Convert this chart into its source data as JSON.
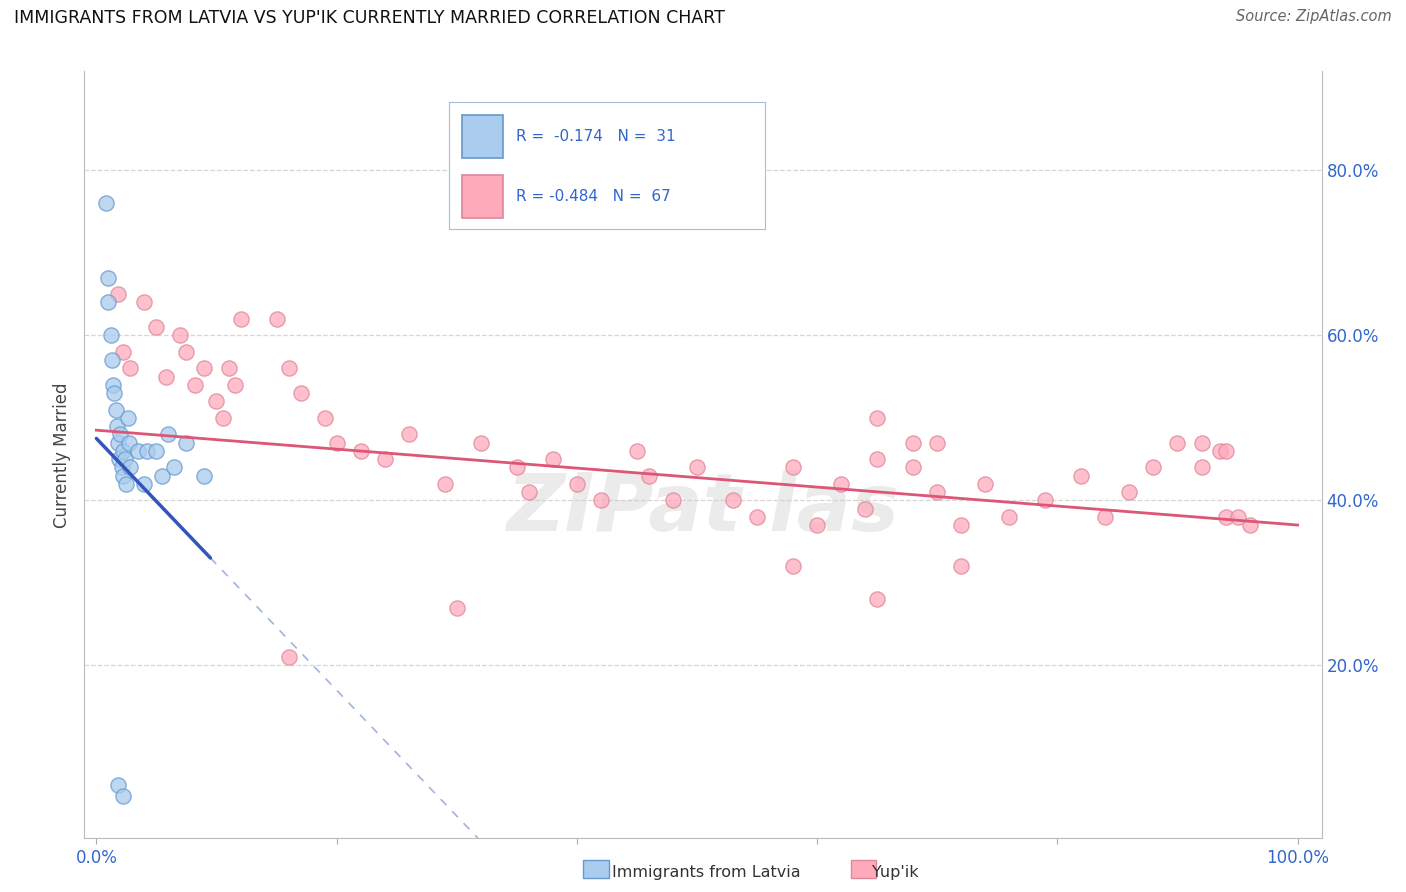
{
  "title": "IMMIGRANTS FROM LATVIA VS YUP'IK CURRENTLY MARRIED CORRELATION CHART",
  "source": "Source: ZipAtlas.com",
  "ylabel": "Currently Married",
  "r_latvia": -0.174,
  "n_latvia": 31,
  "r_yupik": -0.484,
  "n_yupik": 67,
  "xlim": [
    -0.01,
    1.02
  ],
  "ylim": [
    -0.01,
    0.92
  ],
  "xticks": [
    0.0,
    0.2,
    0.4,
    0.6,
    0.8,
    1.0
  ],
  "yticks": [
    0.2,
    0.4,
    0.6,
    0.8
  ],
  "xticklabels": [
    "0.0%",
    "",
    "",
    "",
    "",
    "100.0%"
  ],
  "yticklabels_right": [
    "20.0%",
    "40.0%",
    "60.0%",
    "80.0%"
  ],
  "color_latvia_face": "#aaccee",
  "color_latvia_edge": "#6699cc",
  "color_yupik_face": "#ffaabb",
  "color_yupik_edge": "#dd8899",
  "line_latvia_color": "#3355bb",
  "line_yupik_color": "#dd5577",
  "background": "#ffffff",
  "grid_color": "#cccccc",
  "legend_box_color": "#f0f4ff",
  "legend_border_color": "#aabbdd",
  "latvia_x": [
    0.008,
    0.01,
    0.01,
    0.012,
    0.013,
    0.014,
    0.015,
    0.016,
    0.017,
    0.018,
    0.019,
    0.02,
    0.021,
    0.022,
    0.022,
    0.024,
    0.025,
    0.026,
    0.027,
    0.028,
    0.035,
    0.04,
    0.042,
    0.05,
    0.055,
    0.06,
    0.065,
    0.075,
    0.09,
    0.018,
    0.022
  ],
  "latvia_y": [
    0.76,
    0.67,
    0.64,
    0.6,
    0.57,
    0.54,
    0.53,
    0.51,
    0.49,
    0.47,
    0.45,
    0.48,
    0.44,
    0.46,
    0.43,
    0.45,
    0.42,
    0.5,
    0.47,
    0.44,
    0.46,
    0.42,
    0.46,
    0.46,
    0.43,
    0.48,
    0.44,
    0.47,
    0.43,
    0.055,
    0.042
  ],
  "yupik_x": [
    0.018,
    0.022,
    0.028,
    0.04,
    0.05,
    0.058,
    0.07,
    0.075,
    0.082,
    0.09,
    0.1,
    0.105,
    0.11,
    0.115,
    0.12,
    0.15,
    0.16,
    0.17,
    0.19,
    0.2,
    0.22,
    0.24,
    0.26,
    0.29,
    0.32,
    0.35,
    0.36,
    0.38,
    0.4,
    0.42,
    0.45,
    0.46,
    0.48,
    0.5,
    0.53,
    0.55,
    0.58,
    0.6,
    0.62,
    0.64,
    0.65,
    0.68,
    0.7,
    0.72,
    0.74,
    0.76,
    0.79,
    0.82,
    0.84,
    0.86,
    0.88,
    0.9,
    0.92,
    0.94,
    0.96,
    0.58,
    0.3,
    0.16,
    0.72,
    0.65,
    0.68,
    0.65,
    0.7,
    0.92,
    0.935,
    0.94,
    0.95
  ],
  "yupik_y": [
    0.65,
    0.58,
    0.56,
    0.64,
    0.61,
    0.55,
    0.6,
    0.58,
    0.54,
    0.56,
    0.52,
    0.5,
    0.56,
    0.54,
    0.62,
    0.62,
    0.56,
    0.53,
    0.5,
    0.47,
    0.46,
    0.45,
    0.48,
    0.42,
    0.47,
    0.44,
    0.41,
    0.45,
    0.42,
    0.4,
    0.46,
    0.43,
    0.4,
    0.44,
    0.4,
    0.38,
    0.44,
    0.37,
    0.42,
    0.39,
    0.45,
    0.44,
    0.41,
    0.37,
    0.42,
    0.38,
    0.4,
    0.43,
    0.38,
    0.41,
    0.44,
    0.47,
    0.44,
    0.38,
    0.37,
    0.32,
    0.27,
    0.21,
    0.32,
    0.28,
    0.47,
    0.5,
    0.47,
    0.47,
    0.46,
    0.46,
    0.38
  ],
  "line_lv_x0": 0.0,
  "line_lv_y0": 0.475,
  "line_lv_x1": 0.095,
  "line_lv_y1": 0.33,
  "line_lv_slope": -1.526,
  "line_lv_intercept": 0.475,
  "line_yp_x0": 0.0,
  "line_yp_y0": 0.485,
  "line_yp_x1": 1.0,
  "line_yp_y1": 0.37,
  "watermark_text": "ZIPat las"
}
